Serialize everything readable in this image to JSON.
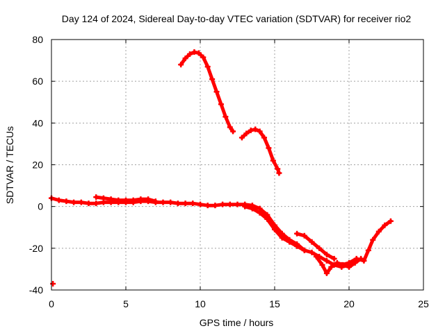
{
  "chart_data": {
    "type": "scatter",
    "title": "Day 124 of 2024, Sidereal Day-to-day VTEC variation (SDTVAR) for receiver rio2",
    "xlabel": "GPS time / hours",
    "ylabel": "SDTVAR / TECUs",
    "xlim": [
      0,
      25
    ],
    "ylim": [
      -40,
      80
    ],
    "xticks": [
      0,
      5,
      10,
      15,
      20,
      25
    ],
    "yticks": [
      -40,
      -20,
      0,
      20,
      40,
      60,
      80
    ],
    "xtick_labels": [
      "0",
      "5",
      "10",
      "15",
      "20",
      "25"
    ],
    "ytick_labels": [
      "-40",
      "-20",
      "0",
      "20",
      "40",
      "60",
      "80"
    ],
    "grid": true,
    "series_color": "#ff0000",
    "series": [
      {
        "name": "low-arc-main",
        "x": [
          0,
          0.5,
          1,
          1.5,
          2,
          2.5,
          3,
          3.5,
          4,
          4.5,
          5,
          5.5,
          6,
          6.5,
          7,
          7.5,
          8,
          8.5,
          9,
          9.5,
          10,
          10.5,
          11,
          11.5,
          12,
          12.5,
          13,
          13.5,
          14,
          14.5,
          15,
          15.5,
          16,
          16.5,
          17
        ],
        "y": [
          4,
          3,
          2.5,
          2,
          2,
          1.5,
          1.5,
          2,
          2,
          2,
          2,
          2,
          2.5,
          2.5,
          2,
          2,
          2,
          1.5,
          1.5,
          1.5,
          1,
          0.5,
          0.5,
          1,
          1,
          1,
          1,
          0.5,
          -1,
          -4,
          -9,
          -13,
          -16,
          -18,
          -21
        ]
      },
      {
        "name": "low-arc-upper-band",
        "x": [
          3,
          3.5,
          4,
          4.5,
          5,
          5.5,
          6,
          6.5,
          7
        ],
        "y": [
          4.5,
          4,
          3.5,
          3,
          3,
          3,
          3.5,
          3.5,
          2.5
        ]
      },
      {
        "name": "descent-branch-a",
        "x": [
          13,
          13.5,
          14,
          14.5,
          15,
          15.5,
          16,
          16.5,
          17,
          17.5,
          18,
          18.5,
          19,
          19.5,
          20
        ],
        "y": [
          0,
          -1,
          -3,
          -6,
          -11,
          -15,
          -17,
          -19,
          -21,
          -22,
          -24,
          -26,
          -28,
          -29,
          -28
        ]
      },
      {
        "name": "descent-branch-b",
        "x": [
          16.5,
          17,
          17.5,
          18,
          18.5,
          19
        ],
        "y": [
          -13,
          -14,
          -17,
          -20,
          -23,
          -25
        ]
      },
      {
        "name": "low-trough",
        "x": [
          17.8,
          18.2,
          18.5,
          18.8,
          19.2,
          19.6,
          20,
          20.4,
          20.8
        ],
        "y": [
          -24,
          -28,
          -32,
          -29,
          -27,
          -28,
          -29,
          -27,
          -25
        ]
      },
      {
        "name": "recovery",
        "x": [
          19.5,
          20,
          20.5,
          21,
          21.3,
          21.6,
          22,
          22.4,
          22.8
        ],
        "y": [
          -28,
          -27,
          -25,
          -26,
          -21,
          -16,
          -12,
          -9,
          -7
        ]
      },
      {
        "name": "high-arc-1",
        "x": [
          8.7,
          9,
          9.3,
          9.6,
          9.9,
          10.2,
          10.5,
          10.8,
          11.1,
          11.4,
          11.7,
          12,
          12.2
        ],
        "y": [
          68,
          71,
          73,
          74,
          73.5,
          71.5,
          67,
          61,
          55,
          49,
          43,
          38,
          36
        ]
      },
      {
        "name": "high-arc-2",
        "x": [
          12.8,
          13.1,
          13.4,
          13.7,
          14,
          14.3,
          14.6,
          14.9,
          15.2,
          15.3
        ],
        "y": [
          33,
          35,
          36.5,
          37,
          36,
          33,
          28,
          22,
          18,
          16
        ]
      },
      {
        "name": "isolated-point",
        "x": [
          0.1
        ],
        "y": [
          -37
        ]
      }
    ]
  }
}
